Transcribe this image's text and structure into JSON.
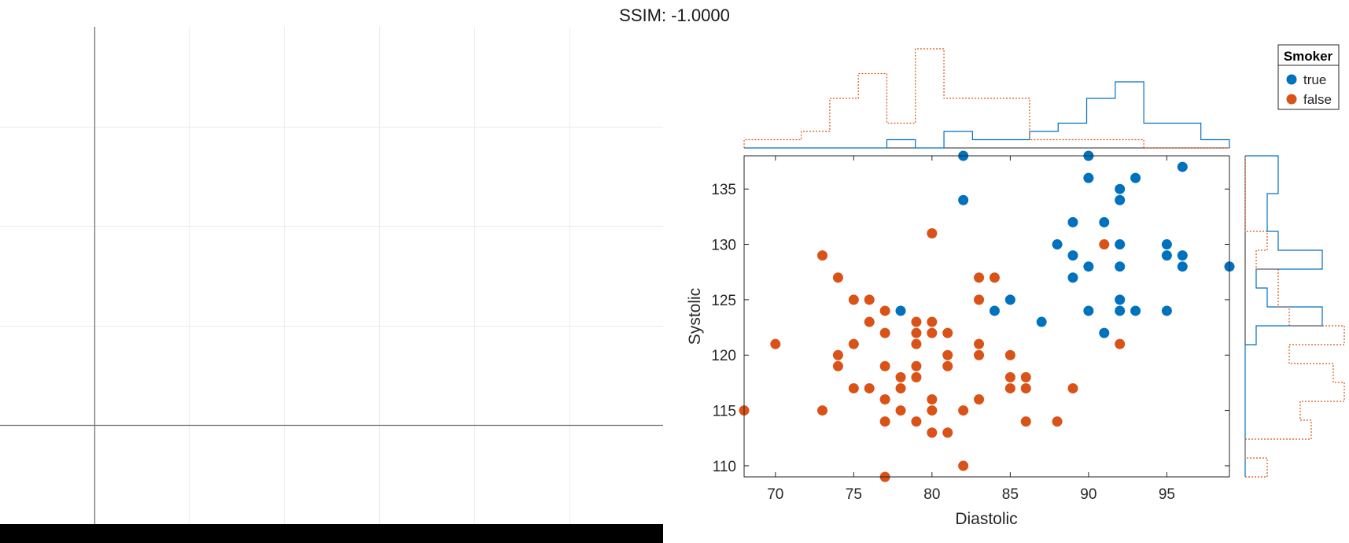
{
  "title": "SSIM: -1.0000",
  "colors": {
    "true": "#0072BD",
    "false": "#D95319"
  },
  "chart_data": {
    "type": "scatter",
    "xlabel": "Diastolic",
    "ylabel": "Systolic",
    "xlim": [
      68,
      99
    ],
    "ylim": [
      109,
      138
    ],
    "xticks": [
      "70",
      "75",
      "80",
      "85",
      "90",
      "95"
    ],
    "yticks": [
      "110",
      "115",
      "120",
      "125",
      "130",
      "135"
    ],
    "legend": {
      "title": "Smoker",
      "placement": "top-right"
    },
    "marginal_histograms": {
      "top": "Diastolic",
      "right": "Systolic",
      "style": "stairs"
    },
    "series": [
      {
        "name": "true",
        "points": [
          [
            82,
            138
          ],
          [
            90,
            138
          ],
          [
            96,
            137
          ],
          [
            90,
            136
          ],
          [
            93,
            136
          ],
          [
            92,
            135
          ],
          [
            92,
            134
          ],
          [
            82,
            134
          ],
          [
            89,
            132
          ],
          [
            91,
            132
          ],
          [
            88,
            130
          ],
          [
            92,
            130
          ],
          [
            95,
            130
          ],
          [
            89,
            129
          ],
          [
            95,
            129
          ],
          [
            96,
            129
          ],
          [
            90,
            128
          ],
          [
            92,
            128
          ],
          [
            96,
            128
          ],
          [
            99,
            128
          ],
          [
            89,
            127
          ],
          [
            85,
            125
          ],
          [
            92,
            125
          ],
          [
            78,
            124
          ],
          [
            84,
            124
          ],
          [
            90,
            124
          ],
          [
            92,
            124
          ],
          [
            93,
            124
          ],
          [
            95,
            124
          ],
          [
            87,
            123
          ],
          [
            91,
            122
          ]
        ]
      },
      {
        "name": "false",
        "points": [
          [
            80,
            131
          ],
          [
            91,
            130
          ],
          [
            73,
            129
          ],
          [
            74,
            127
          ],
          [
            83,
            127
          ],
          [
            84,
            127
          ],
          [
            75,
            125
          ],
          [
            76,
            125
          ],
          [
            83,
            125
          ],
          [
            77,
            124
          ],
          [
            76,
            123
          ],
          [
            79,
            123
          ],
          [
            80,
            123
          ],
          [
            77,
            122
          ],
          [
            79,
            122
          ],
          [
            80,
            122
          ],
          [
            81,
            122
          ],
          [
            70,
            121
          ],
          [
            75,
            121
          ],
          [
            79,
            121
          ],
          [
            83,
            121
          ],
          [
            92,
            121
          ],
          [
            74,
            120
          ],
          [
            81,
            120
          ],
          [
            83,
            120
          ],
          [
            85,
            120
          ],
          [
            74,
            119
          ],
          [
            77,
            119
          ],
          [
            79,
            119
          ],
          [
            81,
            119
          ],
          [
            78,
            118
          ],
          [
            79,
            118
          ],
          [
            85,
            118
          ],
          [
            86,
            118
          ],
          [
            75,
            117
          ],
          [
            76,
            117
          ],
          [
            78,
            117
          ],
          [
            85,
            117
          ],
          [
            86,
            117
          ],
          [
            89,
            117
          ],
          [
            77,
            116
          ],
          [
            80,
            116
          ],
          [
            83,
            116
          ],
          [
            68,
            115
          ],
          [
            73,
            115
          ],
          [
            78,
            115
          ],
          [
            80,
            115
          ],
          [
            82,
            115
          ],
          [
            77,
            114
          ],
          [
            79,
            114
          ],
          [
            86,
            114
          ],
          [
            88,
            114
          ],
          [
            80,
            113
          ],
          [
            81,
            113
          ],
          [
            82,
            110
          ],
          [
            77,
            109
          ]
        ]
      }
    ]
  }
}
